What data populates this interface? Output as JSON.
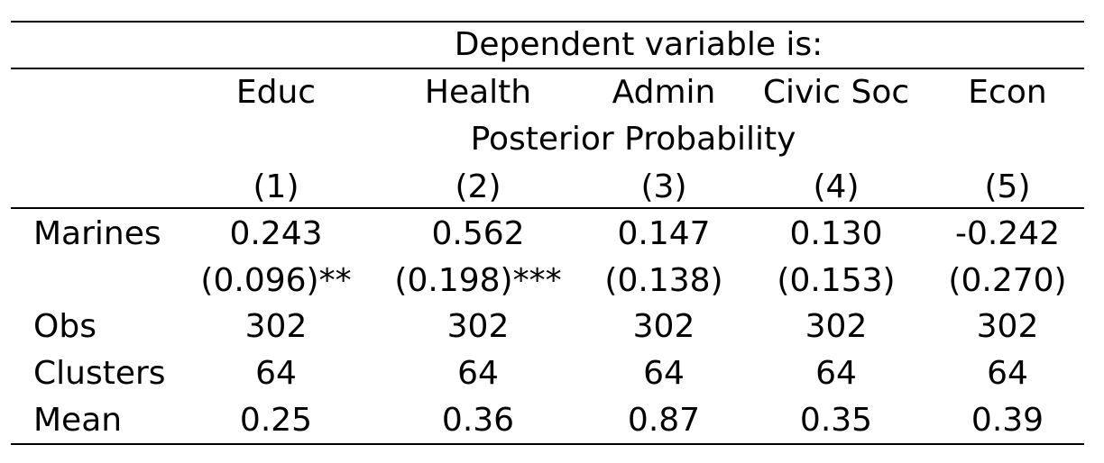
{
  "table": {
    "header_top": "Dependent variable is:",
    "columns": [
      "Educ",
      "Health",
      "Admin",
      "Civic Soc",
      "Econ"
    ],
    "subheader": "Posterior Probability",
    "column_numbers": [
      "(1)",
      "(2)",
      "(3)",
      "(4)",
      "(5)"
    ],
    "rows": [
      {
        "label": "Marines",
        "values": [
          "0.243",
          "0.562",
          "0.147",
          "0.130",
          "-0.242"
        ],
        "se": [
          "(0.096)**",
          "(0.198)***",
          "(0.138)",
          "(0.153)",
          "(0.270)"
        ]
      },
      {
        "label": "Obs",
        "values": [
          "302",
          "302",
          "302",
          "302",
          "302"
        ]
      },
      {
        "label": "Clusters",
        "values": [
          "64",
          "64",
          "64",
          "64",
          "64"
        ]
      },
      {
        "label": "Mean",
        "values": [
          "0.25",
          "0.36",
          "0.87",
          "0.35",
          "0.39"
        ]
      }
    ]
  }
}
